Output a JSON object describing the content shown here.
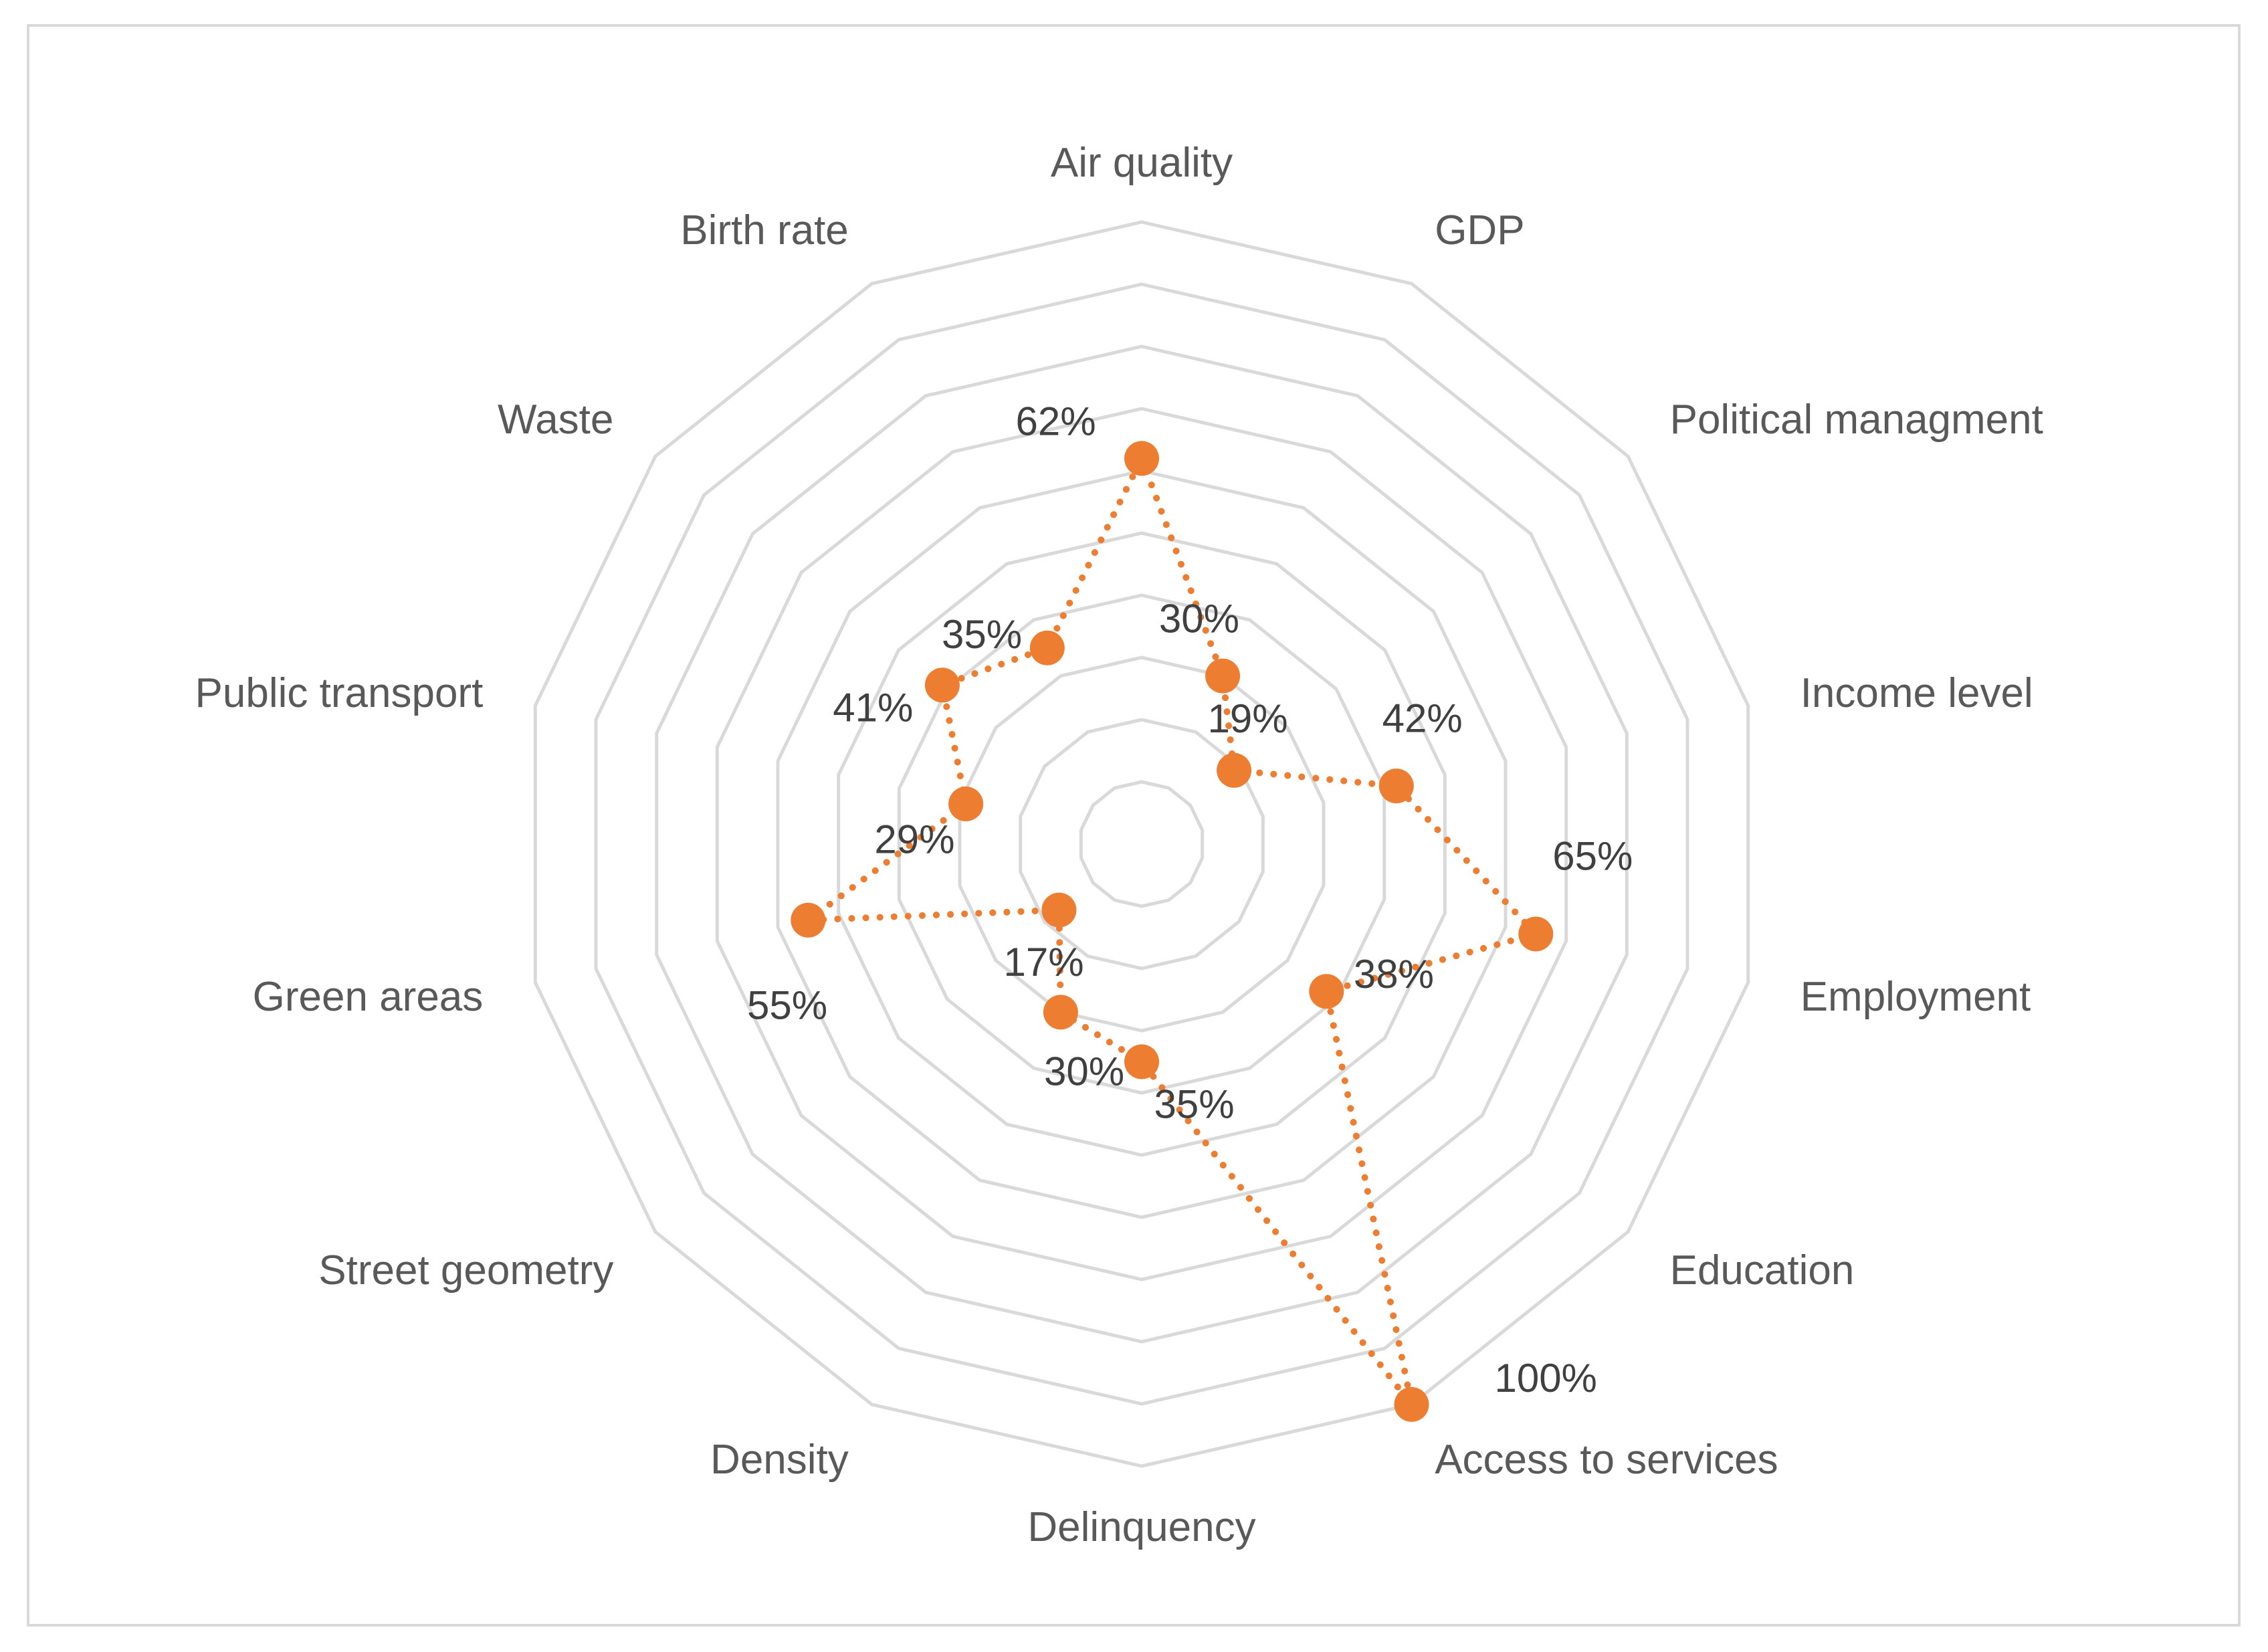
{
  "chart_data": {
    "type": "radar",
    "title": "",
    "categories": [
      "Air quality",
      "GDP",
      "Political managment",
      "Income level",
      "Employment",
      "Education",
      "Access to services",
      "Delinquency",
      "Density",
      "Street geometry",
      "Green areas",
      "Public transport",
      "Waste",
      "Birth rate"
    ],
    "series": [
      {
        "name": "",
        "values": [
          62,
          30,
          19,
          42,
          65,
          38,
          100,
          35,
          30,
          17,
          55,
          29,
          41,
          35
        ],
        "value_labels": [
          "62%",
          "30%",
          "19%",
          "42%",
          "65%",
          "38%",
          "100%",
          "35%",
          "30%",
          "17%",
          "55%",
          "29%",
          "41%",
          "35%"
        ]
      }
    ],
    "rlim": [
      0,
      100
    ],
    "rings": 10,
    "grid": true,
    "legend": "none",
    "series_color": "#ed7d31",
    "grid_color": "#d9d9d9",
    "line_style": "dotted"
  }
}
